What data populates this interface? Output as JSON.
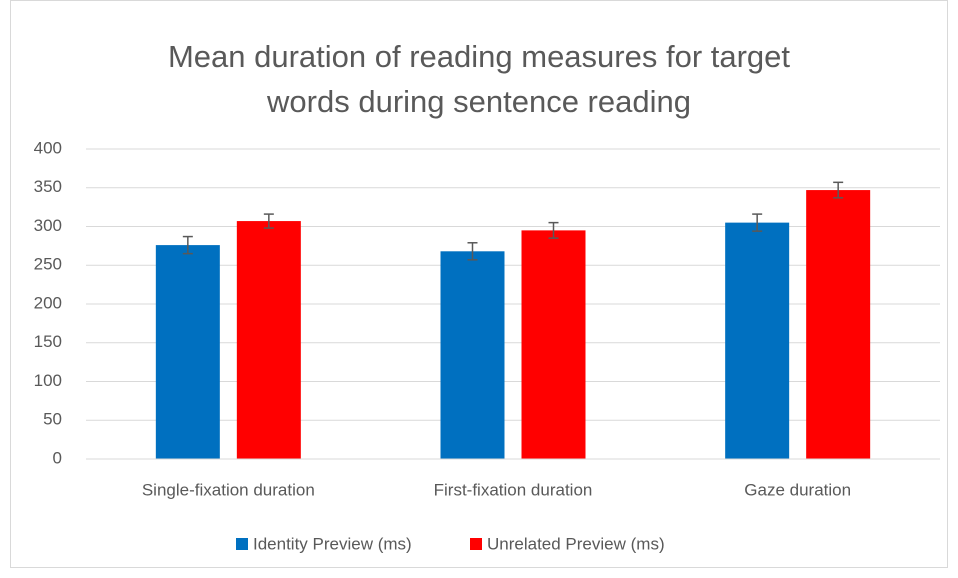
{
  "chart_data": {
    "type": "bar",
    "title": "Mean duration of reading measures for target words during sentence reading",
    "categories": [
      "Single-fixation duration",
      "First-fixation duration",
      "Gaze duration"
    ],
    "series": [
      {
        "name": "Identity Preview (ms)",
        "color": "#0070c0",
        "values": [
          276,
          268,
          305
        ],
        "errors": [
          11,
          11,
          11
        ]
      },
      {
        "name": "Unrelated Preview (ms)",
        "color": "#ff0000",
        "values": [
          307,
          295,
          347
        ],
        "errors": [
          9,
          10,
          10
        ]
      }
    ],
    "ylim": [
      0,
      400
    ],
    "yticks": [
      0,
      50,
      100,
      150,
      200,
      250,
      300,
      350,
      400
    ],
    "grid": true,
    "legend": "bottom"
  }
}
